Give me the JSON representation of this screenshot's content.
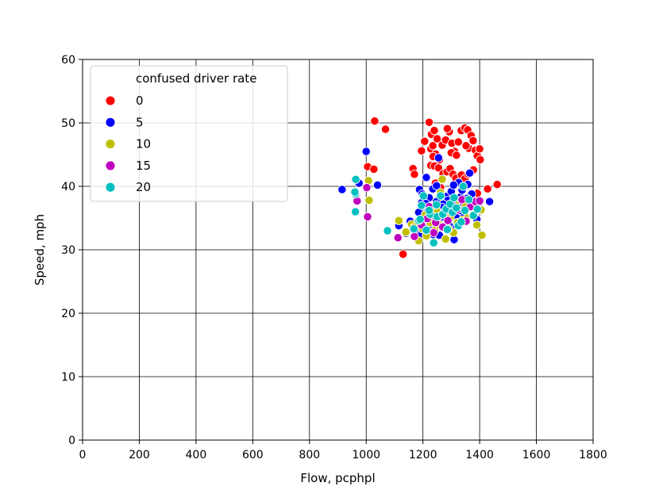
{
  "chart_data": {
    "type": "scatter",
    "title": "",
    "xlabel": "Flow, pcphpl",
    "ylabel": "Speed, mph",
    "xlim": [
      0,
      1800
    ],
    "ylim": [
      0,
      60
    ],
    "xticks": [
      0,
      200,
      400,
      600,
      800,
      1000,
      1200,
      1400,
      1600,
      1800
    ],
    "yticks": [
      0,
      10,
      20,
      30,
      40,
      50,
      60
    ],
    "grid": true,
    "legend": {
      "title": "confused driver rate",
      "placement": "upper-left"
    },
    "series": [
      {
        "name": "0",
        "color": "#ff0000",
        "points": [
          [
            1030,
            50.3
          ],
          [
            1068,
            49
          ],
          [
            1005,
            43.1
          ],
          [
            1027,
            42.7
          ],
          [
            1130,
            29.3
          ],
          [
            1165,
            42.8
          ],
          [
            1170,
            41.9
          ],
          [
            1195,
            45.6
          ],
          [
            1222,
            50.1
          ],
          [
            1230,
            48.2
          ],
          [
            1240,
            48.8
          ],
          [
            1250,
            47.5
          ],
          [
            1228,
            45.9
          ],
          [
            1235,
            46.4
          ],
          [
            1245,
            45.1
          ],
          [
            1258,
            44.2
          ],
          [
            1268,
            46.5
          ],
          [
            1280,
            47.3
          ],
          [
            1293,
            48.6
          ],
          [
            1302,
            46.8
          ],
          [
            1312,
            45.5
          ],
          [
            1325,
            47
          ],
          [
            1335,
            48.8
          ],
          [
            1348,
            49.2
          ],
          [
            1358,
            48.9
          ],
          [
            1370,
            48
          ],
          [
            1377,
            47.2
          ],
          [
            1362,
            46
          ],
          [
            1385,
            45.7
          ],
          [
            1392,
            44.8
          ],
          [
            1400,
            45.9
          ],
          [
            1402,
            44.2
          ],
          [
            1228,
            43.3
          ],
          [
            1240,
            43.2
          ],
          [
            1255,
            42.9
          ],
          [
            1271,
            42
          ],
          [
            1285,
            42.3
          ],
          [
            1296,
            42.8
          ],
          [
            1306,
            41.9
          ],
          [
            1316,
            41.3
          ],
          [
            1336,
            41.8
          ],
          [
            1348,
            41.2
          ],
          [
            1360,
            41.9
          ],
          [
            1378,
            42.6
          ],
          [
            1462,
            40.3
          ],
          [
            1428,
            39.6
          ],
          [
            1392,
            38.9
          ],
          [
            1236,
            44.7
          ],
          [
            1300,
            45.3
          ],
          [
            1318,
            44.9
          ],
          [
            1352,
            46.4
          ],
          [
            1206,
            47.1
          ],
          [
            1286,
            49.1
          ],
          [
            1244,
            40.5
          ],
          [
            1262,
            39.8
          ]
        ]
      },
      {
        "name": "5",
        "color": "#0000ff",
        "points": [
          [
            915,
            39.5
          ],
          [
            1000,
            45.5
          ],
          [
            1040,
            40.2
          ],
          [
            975,
            40.5
          ],
          [
            1115,
            33.8
          ],
          [
            1140,
            32.6
          ],
          [
            1155,
            34.5
          ],
          [
            1175,
            33.2
          ],
          [
            1185,
            35.9
          ],
          [
            1188,
            39.5
          ],
          [
            1195,
            37.4
          ],
          [
            1205,
            33.7
          ],
          [
            1212,
            41.4
          ],
          [
            1218,
            36.2
          ],
          [
            1222,
            38.2
          ],
          [
            1228,
            34.6
          ],
          [
            1235,
            39.6
          ],
          [
            1242,
            36.5
          ],
          [
            1248,
            37.6
          ],
          [
            1255,
            44.5
          ],
          [
            1262,
            35.1
          ],
          [
            1268,
            33.5
          ],
          [
            1275,
            36.3
          ],
          [
            1282,
            38.4
          ],
          [
            1288,
            37.8
          ],
          [
            1295,
            34.9
          ],
          [
            1300,
            39.2
          ],
          [
            1305,
            33.5
          ],
          [
            1310,
            31.6
          ],
          [
            1315,
            36.8
          ],
          [
            1320,
            37.2
          ],
          [
            1326,
            40.6
          ],
          [
            1332,
            38.3
          ],
          [
            1338,
            39.4
          ],
          [
            1345,
            35.6
          ],
          [
            1352,
            40.1
          ],
          [
            1358,
            40.3
          ],
          [
            1365,
            42.1
          ],
          [
            1372,
            38.8
          ],
          [
            1380,
            37.5
          ],
          [
            1390,
            34.8
          ],
          [
            1400,
            36.6
          ],
          [
            1435,
            37.6
          ],
          [
            1225,
            35.2
          ],
          [
            1236,
            32.4
          ],
          [
            1258,
            32.3
          ],
          [
            1292,
            33.9
          ],
          [
            1318,
            35.1
          ],
          [
            1342,
            37
          ],
          [
            1210,
            37.3
          ],
          [
            1198,
            38.8
          ],
          [
            1248,
            40.1
          ],
          [
            1272,
            37.2
          ],
          [
            1308,
            40.2
          ],
          [
            1330,
            36.2
          ],
          [
            1355,
            38.1
          ],
          [
            1228,
            33.4
          ],
          [
            1195,
            32.4
          ],
          [
            1180,
            34.1
          ],
          [
            1265,
            36.7
          ]
        ]
      },
      {
        "name": "10",
        "color": "#bfbf00",
        "points": [
          [
            1008,
            40.9
          ],
          [
            1010,
            37.8
          ],
          [
            1115,
            34.6
          ],
          [
            1140,
            32.8
          ],
          [
            1160,
            34
          ],
          [
            1185,
            31.4
          ],
          [
            1198,
            33.3
          ],
          [
            1212,
            32.2
          ],
          [
            1225,
            34.3
          ],
          [
            1242,
            33.1
          ],
          [
            1258,
            33.9
          ],
          [
            1268,
            41.1
          ],
          [
            1280,
            31.7
          ],
          [
            1296,
            35.1
          ],
          [
            1308,
            32.7
          ],
          [
            1322,
            34.3
          ],
          [
            1340,
            34.7
          ],
          [
            1358,
            35.1
          ],
          [
            1376,
            35.5
          ],
          [
            1390,
            33.9
          ],
          [
            1405,
            36.3
          ],
          [
            1408,
            32.3
          ],
          [
            1262,
            39
          ],
          [
            1248,
            36.2
          ],
          [
            1230,
            36.8
          ],
          [
            1208,
            35.5
          ],
          [
            1170,
            33.6
          ],
          [
            1290,
            33.3
          ],
          [
            1316,
            37.1
          ],
          [
            1350,
            36.9
          ]
        ]
      },
      {
        "name": "15",
        "color": "#bf00bf",
        "points": [
          [
            1005,
            35.2
          ],
          [
            1002,
            39.8
          ],
          [
            965,
            38.7
          ],
          [
            968,
            37.7
          ],
          [
            1112,
            31.9
          ],
          [
            1170,
            32.1
          ],
          [
            1195,
            33.9
          ],
          [
            1222,
            36.8
          ],
          [
            1238,
            32.7
          ],
          [
            1255,
            35.2
          ],
          [
            1270,
            33.6
          ],
          [
            1288,
            34.6
          ],
          [
            1302,
            37.2
          ],
          [
            1320,
            36.3
          ],
          [
            1338,
            37.9
          ],
          [
            1352,
            34.5
          ],
          [
            1368,
            36.8
          ],
          [
            1385,
            37.6
          ],
          [
            1400,
            37.7
          ],
          [
            1245,
            34.3
          ],
          [
            1215,
            34.9
          ],
          [
            1276,
            36
          ]
        ]
      },
      {
        "name": "20",
        "color": "#00bfbf",
        "points": [
          [
            963,
            41.1
          ],
          [
            962,
            38.8
          ],
          [
            962,
            36
          ],
          [
            960,
            39.1
          ],
          [
            1075,
            33
          ],
          [
            1168,
            33.3
          ],
          [
            1185,
            34.6
          ],
          [
            1195,
            37
          ],
          [
            1202,
            38.5
          ],
          [
            1212,
            33.1
          ],
          [
            1225,
            35.6
          ],
          [
            1238,
            31.1
          ],
          [
            1250,
            35.2
          ],
          [
            1262,
            38.5
          ],
          [
            1270,
            35.6
          ],
          [
            1282,
            36.4
          ],
          [
            1296,
            37.2
          ],
          [
            1310,
            38.2
          ],
          [
            1325,
            33.8
          ],
          [
            1335,
            34.4
          ],
          [
            1348,
            36.2
          ],
          [
            1362,
            37.9
          ],
          [
            1378,
            35.4
          ],
          [
            1392,
            36.4
          ],
          [
            1222,
            36.2
          ],
          [
            1248,
            37.1
          ],
          [
            1286,
            33.2
          ],
          [
            1304,
            35.9
          ],
          [
            1318,
            36.6
          ],
          [
            1190,
            34.8
          ],
          [
            1342,
            40
          ]
        ]
      }
    ]
  }
}
